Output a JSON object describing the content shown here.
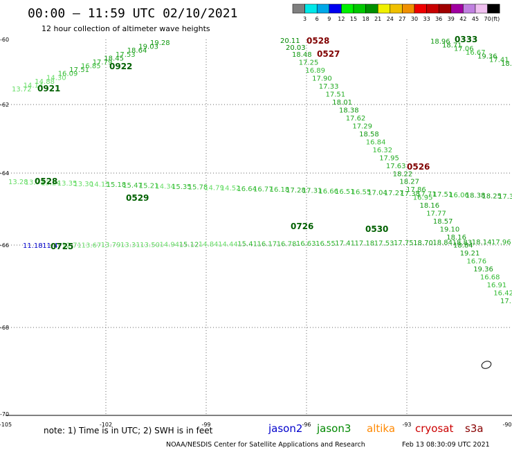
{
  "header": {
    "title": "00:00 — 11:59 UTC 02/10/2021",
    "subtitle": "12 hour collection of altimeter wave heights"
  },
  "colorbar": {
    "colors": [
      "#7f7f7f",
      "#00e8e8",
      "#00a8e8",
      "#0000f0",
      "#00f000",
      "#00c800",
      "#009000",
      "#f0f000",
      "#f0c000",
      "#f09000",
      "#f00000",
      "#c80000",
      "#a00000",
      "#a000a0",
      "#c080e0",
      "#f0c0f0",
      "#000000"
    ],
    "labels": [
      "3",
      "6",
      "9",
      "12",
      "15",
      "18",
      "21",
      "24",
      "27",
      "30",
      "33",
      "36",
      "39",
      "42",
      "45",
      "70"
    ],
    "unit": "(ft)"
  },
  "axes": {
    "lon_ticks": [
      "-105",
      "-102",
      "-99",
      "-96",
      "-93",
      "-90"
    ],
    "lat_ticks": [
      "-60",
      "-62",
      "-64",
      "-66",
      "-68",
      "-70"
    ]
  },
  "tracks": [
    {
      "start": "0921",
      "start_color": "#006000",
      "points": [
        {
          "v": "13.72",
          "c": "#66dd66"
        },
        {
          "v": "14.14",
          "c": "#66dd66"
        },
        {
          "v": "14.88",
          "c": "#66dd66"
        },
        {
          "v": "14.30",
          "c": "#66dd66"
        },
        {
          "v": "16.09",
          "c": "#33bb33"
        },
        {
          "v": "17.51",
          "c": "#22aa22"
        },
        {
          "v": "16.85",
          "c": "#33bb33"
        },
        {
          "v": "17.79",
          "c": "#22aa22"
        },
        {
          "v": "18.45",
          "c": "#119911"
        },
        {
          "v": "17.53",
          "c": "#22aa22"
        },
        {
          "v": "18.64",
          "c": "#119911"
        },
        {
          "v": "19.03",
          "c": "#119911"
        },
        {
          "v": "19.28",
          "c": "#119911"
        }
      ]
    },
    {
      "start": "0922",
      "start_color": "#006000",
      "points": []
    },
    {
      "start": "0528",
      "start_color": "#800000",
      "points": [
        {
          "v": "20.11",
          "c": "#008800"
        },
        {
          "v": "20.03",
          "c": "#008800"
        },
        {
          "v": "18.48",
          "c": "#119911"
        },
        {
          "v": "17.25",
          "c": "#22aa22"
        },
        {
          "v": "16.89",
          "c": "#33bb33"
        },
        {
          "v": "17.90",
          "c": "#22aa22"
        },
        {
          "v": "17.33",
          "c": "#22aa22"
        },
        {
          "v": "17.51",
          "c": "#22aa22"
        },
        {
          "v": "18.01",
          "c": "#119911"
        },
        {
          "v": "18.38",
          "c": "#119911"
        },
        {
          "v": "17.62",
          "c": "#22aa22"
        },
        {
          "v": "17.29",
          "c": "#22aa22"
        },
        {
          "v": "18.58",
          "c": "#119911"
        },
        {
          "v": "16.84",
          "c": "#33bb33"
        },
        {
          "v": "16.32",
          "c": "#33bb33"
        },
        {
          "v": "17.95",
          "c": "#22aa22"
        },
        {
          "v": "17.63",
          "c": "#22aa22"
        },
        {
          "v": "18.22",
          "c": "#119911"
        },
        {
          "v": "18.27",
          "c": "#119911"
        },
        {
          "v": "17.86",
          "c": "#22aa22"
        },
        {
          "v": "16.95",
          "c": "#33bb33"
        },
        {
          "v": "18.16",
          "c": "#119911"
        },
        {
          "v": "17.77",
          "c": "#22aa22"
        },
        {
          "v": "18.57",
          "c": "#119911"
        },
        {
          "v": "19.10",
          "c": "#119911"
        },
        {
          "v": "18.16",
          "c": "#119911"
        },
        {
          "v": "18.84",
          "c": "#119911"
        },
        {
          "v": "19.21",
          "c": "#119911"
        },
        {
          "v": "16.76",
          "c": "#33bb33"
        },
        {
          "v": "19.36",
          "c": "#119911"
        },
        {
          "v": "16.68",
          "c": "#33bb33"
        },
        {
          "v": "16.91",
          "c": "#33bb33"
        },
        {
          "v": "16.42",
          "c": "#33bb33"
        },
        {
          "v": "17.",
          "c": "#22aa22"
        }
      ]
    },
    {
      "start": "0527",
      "start_color": "#800000",
      "points": []
    },
    {
      "start": "0526",
      "start_color": "#800000",
      "points": []
    },
    {
      "start": "0333",
      "start_color": "#006000",
      "points": [
        {
          "v": "18.96",
          "c": "#119911"
        },
        {
          "v": "18.71",
          "c": "#119911"
        },
        {
          "v": "17.06",
          "c": "#22aa22"
        },
        {
          "v": "16.67",
          "c": "#33bb33"
        },
        {
          "v": "19.36",
          "c": "#119911"
        },
        {
          "v": "17.41",
          "c": "#22aa22"
        },
        {
          "v": "18.8",
          "c": "#119911"
        }
      ]
    },
    {
      "start": "0528",
      "start_color": "#006000",
      "points": [
        {
          "v": "13.28",
          "c": "#66dd66"
        },
        {
          "v": "13.71",
          "c": "#66dd66"
        },
        {
          "v": "13.24",
          "c": "#66dd66"
        },
        {
          "v": "13.35",
          "c": "#66dd66"
        },
        {
          "v": "13.30",
          "c": "#66dd66"
        },
        {
          "v": "14.15",
          "c": "#66dd66"
        },
        {
          "v": "15.18",
          "c": "#33bb33"
        },
        {
          "v": "15.47",
          "c": "#33bb33"
        },
        {
          "v": "15.21",
          "c": "#33bb33"
        },
        {
          "v": "14.34",
          "c": "#66dd66"
        },
        {
          "v": "15.35",
          "c": "#33bb33"
        },
        {
          "v": "15.78",
          "c": "#33bb33"
        },
        {
          "v": "14.79",
          "c": "#66dd66"
        },
        {
          "v": "14.52",
          "c": "#66dd66"
        },
        {
          "v": "16.64",
          "c": "#33bb33"
        },
        {
          "v": "16.77",
          "c": "#33bb33"
        },
        {
          "v": "16.18",
          "c": "#33bb33"
        },
        {
          "v": "17.28",
          "c": "#22aa22"
        },
        {
          "v": "17.31",
          "c": "#22aa22"
        },
        {
          "v": "16.66",
          "c": "#33bb33"
        },
        {
          "v": "16.51",
          "c": "#33bb33"
        },
        {
          "v": "16.55",
          "c": "#33bb33"
        },
        {
          "v": "17.04",
          "c": "#22aa22"
        },
        {
          "v": "17.27",
          "c": "#22aa22"
        },
        {
          "v": "17.38",
          "c": "#22aa22"
        },
        {
          "v": "17.71",
          "c": "#22aa22"
        },
        {
          "v": "17.51",
          "c": "#22aa22"
        },
        {
          "v": "16.06",
          "c": "#33bb33"
        },
        {
          "v": "18.38",
          "c": "#119911"
        },
        {
          "v": "18.25",
          "c": "#119911"
        },
        {
          "v": "17.3",
          "c": "#22aa22"
        }
      ]
    },
    {
      "start": "0529",
      "start_color": "#006000",
      "points": []
    },
    {
      "start": "0725",
      "start_color": "#006000",
      "points": [
        {
          "v": "11.18",
          "c": "#0000cc"
        },
        {
          "v": "11.47",
          "c": "#0000cc"
        },
        {
          "v": "12.71",
          "c": "#66dd66"
        },
        {
          "v": "13.67",
          "c": "#66dd66"
        },
        {
          "v": "13.79",
          "c": "#66dd66"
        },
        {
          "v": "13.31",
          "c": "#66dd66"
        },
        {
          "v": "13.50",
          "c": "#66dd66"
        },
        {
          "v": "14.94",
          "c": "#66dd66"
        },
        {
          "v": "15.12",
          "c": "#33bb33"
        },
        {
          "v": "14.84",
          "c": "#66dd66"
        },
        {
          "v": "14.44",
          "c": "#66dd66"
        },
        {
          "v": "15.41",
          "c": "#33bb33"
        },
        {
          "v": "16.17",
          "c": "#33bb33"
        },
        {
          "v": "16.78",
          "c": "#33bb33"
        },
        {
          "v": "16.63",
          "c": "#33bb33"
        },
        {
          "v": "16.55",
          "c": "#33bb33"
        },
        {
          "v": "17.41",
          "c": "#22aa22"
        },
        {
          "v": "17.18",
          "c": "#22aa22"
        },
        {
          "v": "17.53",
          "c": "#22aa22"
        },
        {
          "v": "17.75",
          "c": "#22aa22"
        },
        {
          "v": "18.70",
          "c": "#119911"
        },
        {
          "v": "18.84",
          "c": "#119911"
        },
        {
          "v": "18.83",
          "c": "#119911"
        },
        {
          "v": "18.14",
          "c": "#119911"
        },
        {
          "v": "17.96",
          "c": "#22aa22"
        }
      ]
    },
    {
      "start": "0530",
      "start_color": "#006000",
      "points": []
    },
    {
      "start": "0726",
      "start_color": "#006000",
      "points": []
    }
  ],
  "legend": {
    "note": "note: 1) Time is in UTC; 2) SWH is in feet",
    "satellites": [
      {
        "name": "jason2",
        "color": "#0000cc"
      },
      {
        "name": "jason3",
        "color": "#008800"
      },
      {
        "name": "altika",
        "color": "#ff8800"
      },
      {
        "name": "cryosat",
        "color": "#cc0000"
      },
      {
        "name": "s3a",
        "color": "#880000"
      }
    ]
  },
  "footer": {
    "credit": "NOAA/NESDIS Center for Satellite Applications and Research",
    "timestamp": "Feb 13 08:30:09 UTC 2021"
  }
}
